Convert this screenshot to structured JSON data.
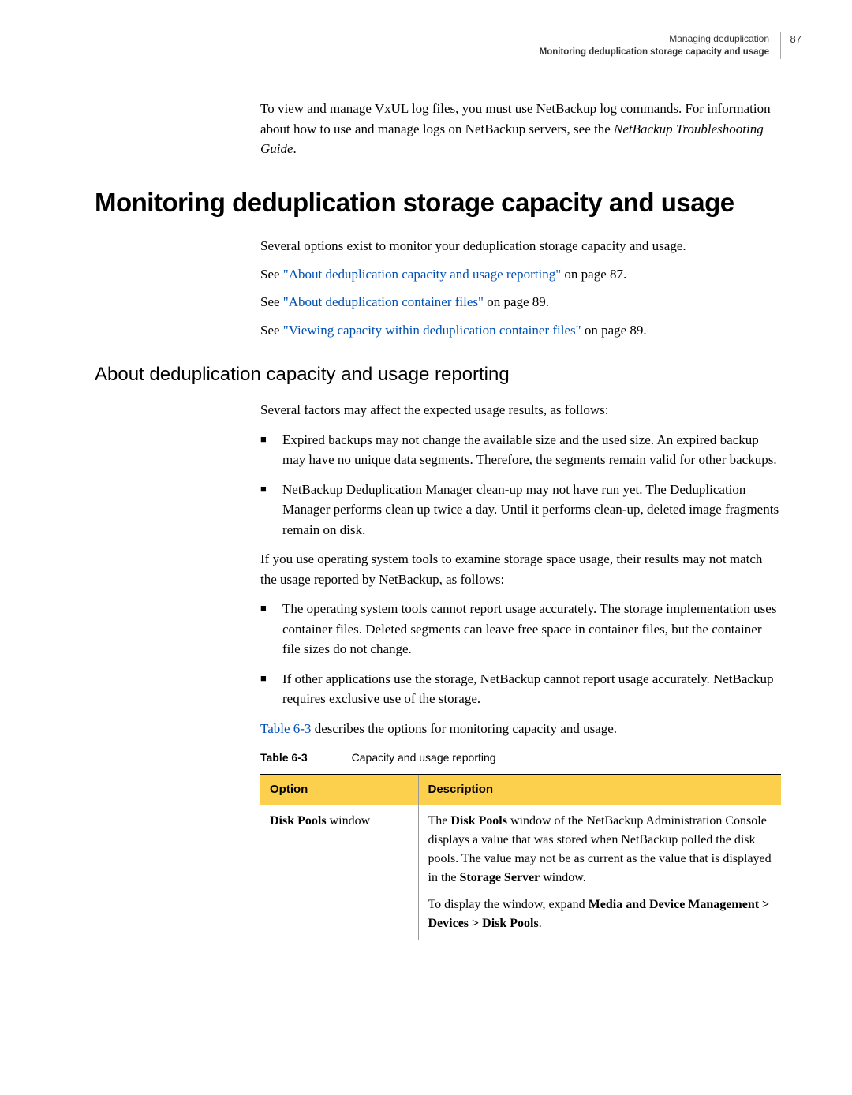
{
  "header": {
    "chapter": "Managing deduplication",
    "section": "Monitoring deduplication storage capacity and usage",
    "page_number": "87"
  },
  "lead_para": {
    "line1": "To view and manage VxUL log files, you must use NetBackup log commands. For information about how to use and manage logs on NetBackup servers, see the ",
    "italic": "NetBackup Troubleshooting Guide",
    "trail": "."
  },
  "h1": "Monitoring deduplication storage capacity and usage",
  "after_h1": {
    "p1": "Several options exist to monitor your deduplication storage capacity and usage.",
    "see1_pre": "See ",
    "see1_link": "\"About deduplication capacity and usage reporting\"",
    "see1_post": " on page 87.",
    "see2_pre": "See ",
    "see2_link": "\"About deduplication container files\"",
    "see2_post": " on page 89.",
    "see3_pre": "See ",
    "see3_link": "\"Viewing capacity within deduplication container files\"",
    "see3_post": " on page 89."
  },
  "h2": "About deduplication capacity and usage reporting",
  "after_h2_p": "Several factors may affect the expected usage results, as follows:",
  "bullets1": {
    "b1": "Expired backups may not change the available size and the used size. An expired backup may have no unique data segments. Therefore, the segments remain valid for other backups.",
    "b2": "NetBackup Deduplication Manager clean-up may not have run yet. The Deduplication Manager performs clean up twice a day. Until it performs clean-up, deleted image fragments remain on disk."
  },
  "mid_p": "If you use operating system tools to examine storage space usage, their results may not match the usage reported by NetBackup, as follows:",
  "bullets2": {
    "b1": "The operating system tools cannot report usage accurately. The storage implementation uses container files. Deleted segments can leave free space in container files, but the container file sizes do not change.",
    "b2": "If other applications use the storage, NetBackup cannot report usage accurately. NetBackup requires exclusive use of the storage."
  },
  "pre_table": {
    "link": "Table 6-3",
    "post": " describes the options for monitoring capacity and usage."
  },
  "table": {
    "caption_label": "Table 6-3",
    "caption_text": "Capacity and usage reporting",
    "col1": "Option",
    "col2": "Description",
    "row1_opt_bold": "Disk Pools",
    "row1_opt_rest": " window",
    "row1_desc_p1_a": "The ",
    "row1_desc_p1_b": "Disk Pools",
    "row1_desc_p1_c": " window of the NetBackup Administration Console displays a value that was stored when NetBackup polled the disk pools. The value may not be as current as the value that is displayed in the ",
    "row1_desc_p1_d": "Storage Server",
    "row1_desc_p1_e": " window.",
    "row1_desc_p2_a": "To display the window, expand ",
    "row1_desc_p2_b": "Media and Device Management > Devices > Disk Pools",
    "row1_desc_p2_c": "."
  }
}
